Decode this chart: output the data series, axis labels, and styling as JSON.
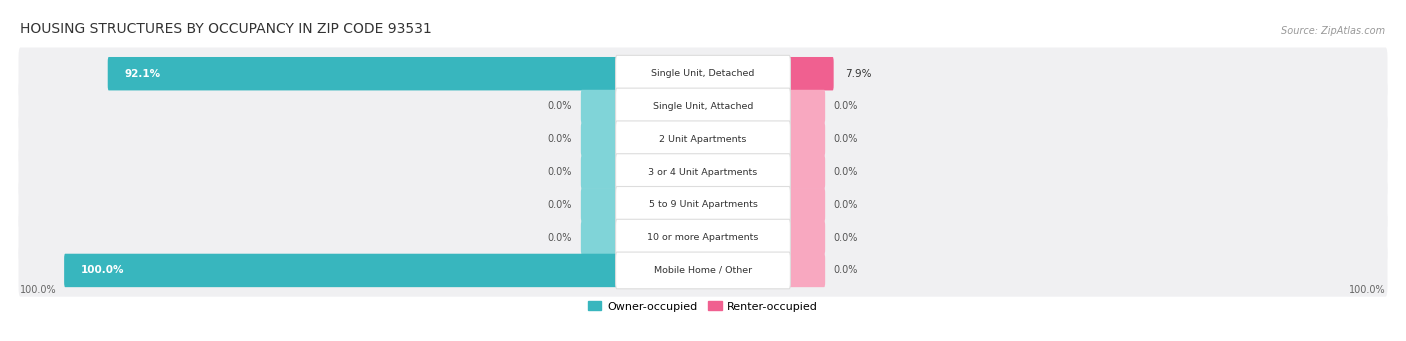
{
  "title": "HOUSING STRUCTURES BY OCCUPANCY IN ZIP CODE 93531",
  "source": "Source: ZipAtlas.com",
  "categories": [
    "Single Unit, Detached",
    "Single Unit, Attached",
    "2 Unit Apartments",
    "3 or 4 Unit Apartments",
    "5 to 9 Unit Apartments",
    "10 or more Apartments",
    "Mobile Home / Other"
  ],
  "owner_values": [
    92.1,
    0.0,
    0.0,
    0.0,
    0.0,
    0.0,
    100.0
  ],
  "renter_values": [
    7.9,
    0.0,
    0.0,
    0.0,
    0.0,
    0.0,
    0.0
  ],
  "owner_color": "#38b6be",
  "renter_color": "#f06090",
  "owner_color_stub": "#80d4d8",
  "renter_color_stub": "#f8a8c0",
  "row_bg_color": "#f0f0f2",
  "row_border_color": "#e0e0e4",
  "label_left_owner": [
    "92.1%",
    "0.0%",
    "0.0%",
    "0.0%",
    "0.0%",
    "0.0%",
    "100.0%"
  ],
  "label_right_renter": [
    "7.9%",
    "0.0%",
    "0.0%",
    "0.0%",
    "0.0%",
    "0.0%",
    "0.0%"
  ],
  "max_value": 100.0,
  "figsize": [
    14.06,
    3.41
  ],
  "dpi": 100
}
